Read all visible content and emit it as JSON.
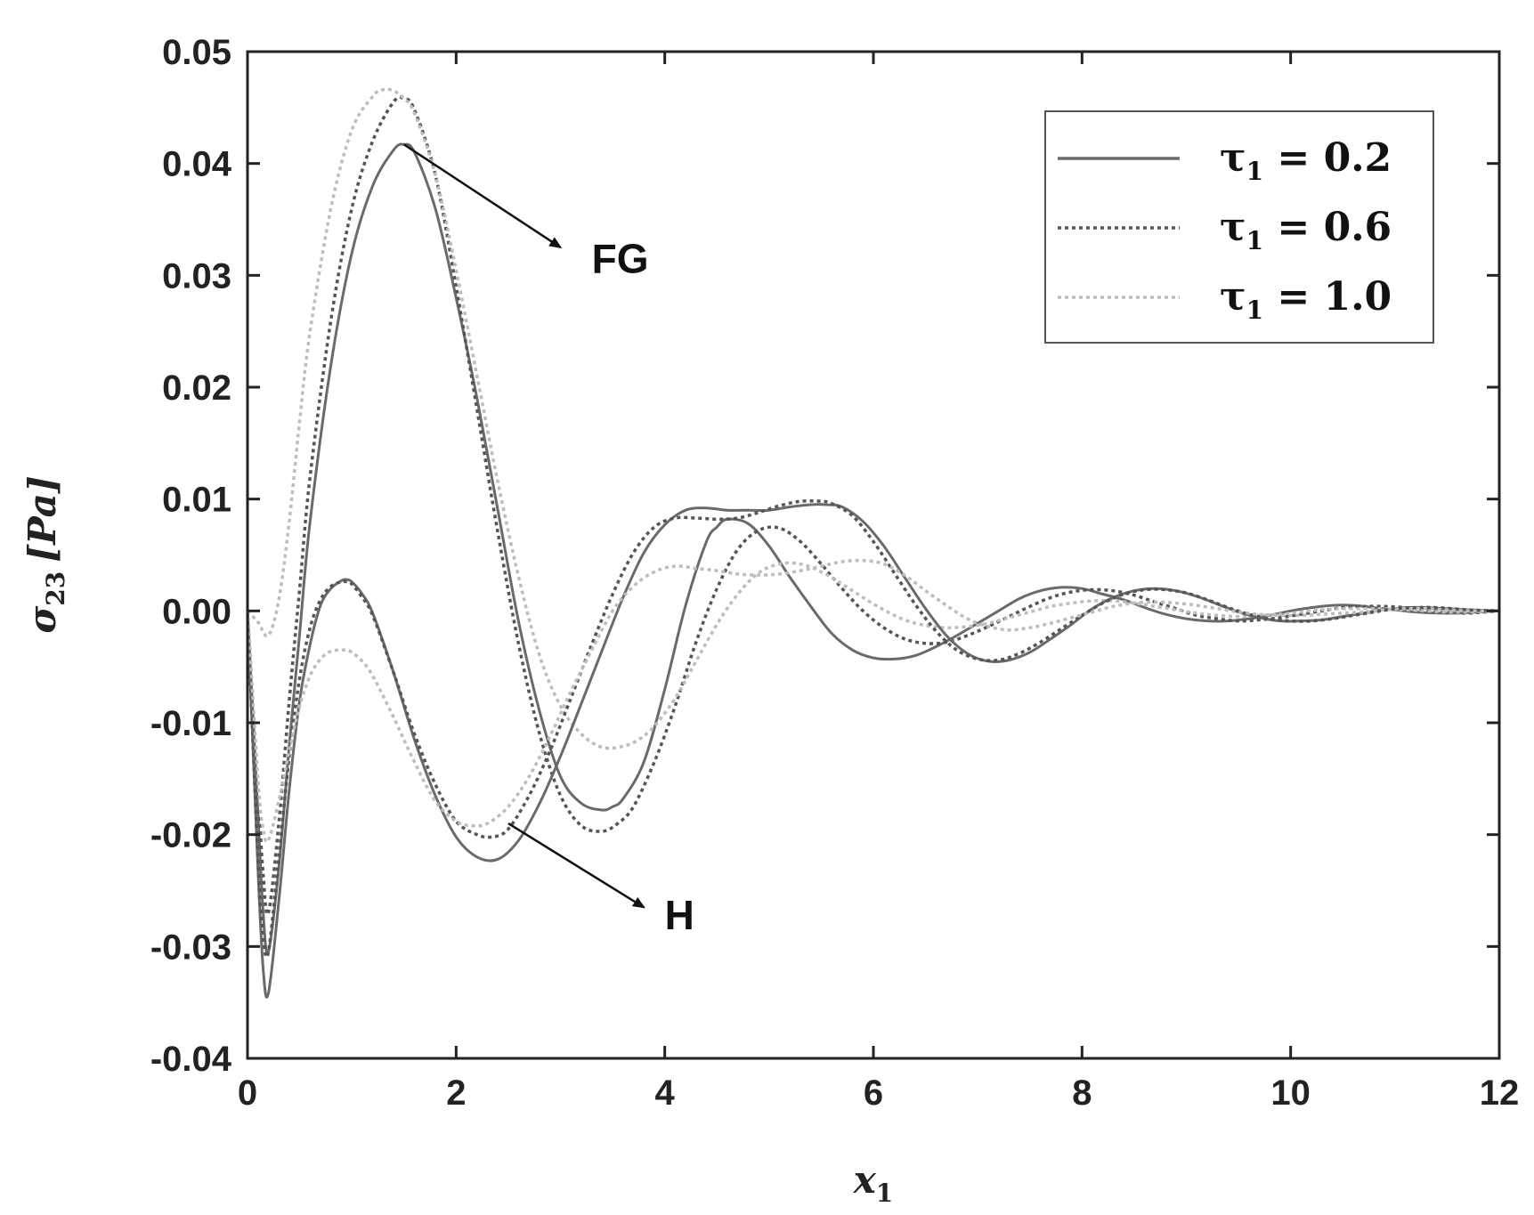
{
  "chart_data": {
    "type": "line",
    "xlabel": "x",
    "xlabel_sub": "1",
    "ylabel": "σ",
    "ylabel_sub": "23",
    "ylabel_unit": "[Pa]",
    "xlim": [
      0,
      12
    ],
    "ylim": [
      -0.04,
      0.05
    ],
    "xticks": [
      0,
      2,
      4,
      6,
      8,
      10,
      12
    ],
    "xtick_labels": [
      "0",
      "2",
      "4",
      "6",
      "8",
      "10",
      "12"
    ],
    "yticks": [
      -0.04,
      -0.03,
      -0.02,
      -0.01,
      0.0,
      0.01,
      0.02,
      0.03,
      0.04,
      0.05
    ],
    "ytick_labels": [
      "-0.04",
      "-0.03",
      "-0.02",
      "-0.01",
      "0.00",
      "0.01",
      "0.02",
      "0.03",
      "0.04",
      "0.05"
    ],
    "grid": false,
    "legend_position": "top-right",
    "legend": [
      {
        "tau": "τ",
        "sub": "1",
        "value": " = 0.2",
        "style": "solid",
        "color": "#6a6a6a"
      },
      {
        "tau": "τ",
        "sub": "1",
        "value": " = 0.6",
        "style": "dotted",
        "color": "#555555"
      },
      {
        "tau": "τ",
        "sub": "1",
        "value": " = 1.0",
        "style": "dotted",
        "color": "#bdbdbd"
      }
    ],
    "annotations": [
      {
        "text": "FG",
        "from": [
          1.5,
          0.0417
        ],
        "to": [
          3.0,
          0.0325
        ],
        "label_at": [
          3.3,
          0.0315
        ]
      },
      {
        "text": "H",
        "from": [
          2.5,
          -0.019
        ],
        "to": [
          3.8,
          -0.0265
        ],
        "label_at": [
          4.0,
          -0.0272
        ]
      }
    ],
    "series": [
      {
        "group": "FG",
        "tau": 0.2,
        "style": "solid",
        "color": "#6a6a6a",
        "x": [
          0,
          0.1,
          0.15,
          0.2,
          0.3,
          0.4,
          0.5,
          0.6,
          0.8,
          1.0,
          1.2,
          1.4,
          1.5,
          1.6,
          1.8,
          2.0,
          2.2,
          2.4,
          2.6,
          2.8,
          3.0,
          3.2,
          3.4,
          3.5,
          3.6,
          3.8,
          4.0,
          4.2,
          4.4,
          4.5,
          4.6,
          4.8,
          5.0,
          5.2,
          5.4,
          5.6,
          5.8,
          6.0,
          6.2,
          6.4,
          6.6,
          6.8,
          7.0,
          7.2,
          7.4,
          7.6,
          7.8,
          8.0,
          8.2,
          8.4,
          8.6,
          8.8,
          9.0,
          9.2,
          9.4,
          9.6,
          9.8,
          10.0,
          10.2,
          10.4,
          10.6,
          10.8,
          11.0,
          11.2,
          11.4,
          11.6,
          11.8,
          12.0
        ],
        "y": [
          0,
          -0.018,
          -0.027,
          -0.0305,
          -0.023,
          -0.012,
          -0.002,
          0.008,
          0.022,
          0.032,
          0.038,
          0.0412,
          0.0417,
          0.041,
          0.036,
          0.028,
          0.019,
          0.009,
          -0.001,
          -0.009,
          -0.0148,
          -0.0172,
          -0.0178,
          -0.0175,
          -0.0168,
          -0.0135,
          -0.007,
          0.0005,
          0.0062,
          0.0075,
          0.0082,
          0.0078,
          0.0058,
          0.003,
          0.0004,
          -0.002,
          -0.0035,
          -0.0042,
          -0.0043,
          -0.004,
          -0.0032,
          -0.0022,
          -0.0011,
          0.0,
          0.0011,
          0.0018,
          0.0021,
          0.002,
          0.0015,
          0.001,
          0.0003,
          -0.0003,
          -0.0007,
          -0.0009,
          -0.0009,
          -0.0007,
          -0.0004,
          0.0,
          0.0003,
          0.0005,
          0.0005,
          0.0003,
          0.0001,
          -0.0001,
          -0.0002,
          -0.0002,
          -0.0001,
          0.0
        ]
      },
      {
        "group": "FG",
        "tau": 0.6,
        "style": "dotted",
        "color": "#555555",
        "x": [
          0,
          0.1,
          0.15,
          0.2,
          0.3,
          0.4,
          0.5,
          0.6,
          0.8,
          1.0,
          1.2,
          1.4,
          1.5,
          1.6,
          1.8,
          2.0,
          2.2,
          2.4,
          2.6,
          2.8,
          3.0,
          3.2,
          3.4,
          3.55,
          3.7,
          3.9,
          4.1,
          4.3,
          4.5,
          4.7,
          4.9,
          5.1,
          5.3,
          5.5,
          5.7,
          5.9,
          6.1,
          6.3,
          6.5,
          6.7,
          6.9,
          7.1,
          7.3,
          7.5,
          7.7,
          7.9,
          8.1,
          8.3,
          8.5,
          8.7,
          8.9,
          9.1,
          9.3,
          9.5,
          9.7,
          9.9,
          10.1,
          10.3,
          10.5,
          10.7,
          10.9,
          11.1,
          11.3,
          11.5,
          11.7,
          12.0
        ],
        "y": [
          0,
          -0.016,
          -0.0235,
          -0.027,
          -0.019,
          -0.008,
          0.002,
          0.012,
          0.026,
          0.036,
          0.042,
          0.0455,
          0.0458,
          0.0448,
          0.039,
          0.029,
          0.018,
          0.007,
          -0.003,
          -0.011,
          -0.0165,
          -0.0192,
          -0.0197,
          -0.019,
          -0.0175,
          -0.0135,
          -0.0085,
          -0.0028,
          0.002,
          0.0055,
          0.0072,
          0.0074,
          0.0062,
          0.0042,
          0.002,
          0.0,
          -0.0015,
          -0.0025,
          -0.0029,
          -0.0028,
          -0.0022,
          -0.0014,
          -0.0005,
          0.0004,
          0.0012,
          0.0017,
          0.0019,
          0.0018,
          0.0014,
          0.0008,
          0.0002,
          -0.0004,
          -0.0007,
          -0.0009,
          -0.0008,
          -0.0006,
          -0.0003,
          0.0,
          0.0003,
          0.0004,
          0.0004,
          0.0003,
          0.0001,
          -0.0001,
          -0.0002,
          0.0
        ]
      },
      {
        "group": "FG",
        "tau": 1.0,
        "style": "dotted",
        "color": "#bdbdbd",
        "x": [
          0,
          0.1,
          0.2,
          0.3,
          0.4,
          0.5,
          0.6,
          0.8,
          1.0,
          1.2,
          1.3,
          1.4,
          1.5,
          1.6,
          1.8,
          2.0,
          2.2,
          2.4,
          2.6,
          2.8,
          3.0,
          3.2,
          3.4,
          3.6,
          3.75,
          3.9,
          4.1,
          4.3,
          4.5,
          4.7,
          4.9,
          5.1,
          5.3,
          5.5,
          5.7,
          5.9,
          6.1,
          6.3,
          6.5,
          6.7,
          6.9,
          7.1,
          7.3,
          7.5,
          7.7,
          7.9,
          8.1,
          8.3,
          8.5,
          8.7,
          8.9,
          9.1,
          9.3,
          9.5,
          9.7,
          9.9,
          10.1,
          10.3,
          10.5,
          10.7,
          10.9,
          11.1,
          11.3,
          11.5,
          11.7,
          12.0
        ],
        "y": [
          0,
          -0.001,
          -0.0022,
          0.001,
          0.008,
          0.017,
          0.025,
          0.036,
          0.043,
          0.046,
          0.0466,
          0.0465,
          0.0458,
          0.0445,
          0.039,
          0.0305,
          0.021,
          0.0115,
          0.003,
          -0.004,
          -0.0085,
          -0.011,
          -0.0122,
          -0.0121,
          -0.0115,
          -0.0103,
          -0.0078,
          -0.0045,
          -0.0012,
          0.0015,
          0.0034,
          0.0042,
          0.0042,
          0.0035,
          0.0024,
          0.0012,
          0.0001,
          -0.0008,
          -0.0013,
          -0.0015,
          -0.0014,
          -0.0011,
          -0.0006,
          -0.0001,
          0.0004,
          0.0007,
          0.0009,
          0.0009,
          0.0007,
          0.0004,
          0.0001,
          -0.0002,
          -0.0004,
          -0.0005,
          -0.0004,
          -0.0003,
          -0.0001,
          0.0001,
          0.0002,
          0.0002,
          0.0002,
          0.0001,
          0.0,
          -0.0001,
          -0.0001,
          0.0
        ]
      },
      {
        "group": "H",
        "tau": 0.2,
        "style": "solid",
        "color": "#6a6a6a",
        "x": [
          0,
          0.1,
          0.15,
          0.2,
          0.3,
          0.4,
          0.5,
          0.6,
          0.7,
          0.8,
          0.9,
          0.95,
          1.0,
          1.1,
          1.2,
          1.4,
          1.6,
          1.8,
          2.0,
          2.2,
          2.4,
          2.6,
          2.8,
          3.0,
          3.2,
          3.4,
          3.6,
          3.8,
          4.0,
          4.2,
          4.4,
          4.6,
          4.8,
          5.0,
          5.2,
          5.4,
          5.55,
          5.7,
          5.9,
          6.1,
          6.3,
          6.5,
          6.7,
          6.9,
          7.1,
          7.3,
          7.5,
          7.7,
          7.9,
          8.1,
          8.3,
          8.5,
          8.7,
          8.9,
          9.1,
          9.3,
          9.5,
          9.7,
          9.9,
          10.1,
          10.3,
          10.5,
          10.7,
          10.9,
          11.1,
          11.3,
          11.5,
          11.7,
          12.0
        ],
        "y": [
          0,
          -0.023,
          -0.032,
          -0.0342,
          -0.026,
          -0.016,
          -0.008,
          -0.003,
          0.0005,
          0.002,
          0.0027,
          0.0028,
          0.0026,
          0.0015,
          -0.0002,
          -0.0055,
          -0.0115,
          -0.0165,
          -0.0202,
          -0.022,
          -0.0222,
          -0.0205,
          -0.0172,
          -0.013,
          -0.0083,
          -0.0035,
          0.0012,
          0.0052,
          0.0077,
          0.009,
          0.0092,
          0.009,
          0.009,
          0.009,
          0.0093,
          0.0095,
          0.0095,
          0.0093,
          0.008,
          0.0058,
          0.003,
          0.0002,
          -0.0022,
          -0.0038,
          -0.0045,
          -0.0044,
          -0.0037,
          -0.0025,
          -0.0012,
          0.0002,
          0.0012,
          0.0018,
          0.002,
          0.0018,
          0.0013,
          0.0006,
          -0.0001,
          -0.0006,
          -0.0009,
          -0.0009,
          -0.0008,
          -0.0005,
          -0.0002,
          0.0001,
          0.0003,
          0.0003,
          0.0002,
          0.0001,
          0.0
        ]
      },
      {
        "group": "H",
        "tau": 0.6,
        "style": "dotted",
        "color": "#555555",
        "x": [
          0,
          0.1,
          0.15,
          0.2,
          0.3,
          0.4,
          0.5,
          0.6,
          0.7,
          0.8,
          0.9,
          0.95,
          1.0,
          1.1,
          1.2,
          1.4,
          1.6,
          1.8,
          2.0,
          2.2,
          2.35,
          2.5,
          2.7,
          2.9,
          3.1,
          3.3,
          3.5,
          3.7,
          3.9,
          4.1,
          4.3,
          4.5,
          4.7,
          4.9,
          5.1,
          5.3,
          5.5,
          5.6,
          5.8,
          6.0,
          6.2,
          6.4,
          6.6,
          6.8,
          7.0,
          7.2,
          7.4,
          7.6,
          7.8,
          8.0,
          8.2,
          8.4,
          8.6,
          8.8,
          9.0,
          9.2,
          9.4,
          9.6,
          9.8,
          10.0,
          10.2,
          10.4,
          10.6,
          10.8,
          11.0,
          11.2,
          11.4,
          11.7,
          12.0
        ],
        "y": [
          0,
          -0.022,
          -0.029,
          -0.0305,
          -0.022,
          -0.013,
          -0.006,
          -0.0015,
          0.001,
          0.0022,
          0.0026,
          0.0026,
          0.0024,
          0.0012,
          -0.0004,
          -0.0055,
          -0.011,
          -0.0155,
          -0.0188,
          -0.02,
          -0.0202,
          -0.0195,
          -0.0165,
          -0.0125,
          -0.0078,
          -0.003,
          0.0015,
          0.0052,
          0.0075,
          0.0083,
          0.0083,
          0.0082,
          0.0083,
          0.0088,
          0.0094,
          0.0098,
          0.0098,
          0.0096,
          0.0085,
          0.0062,
          0.0034,
          0.0006,
          -0.0018,
          -0.0035,
          -0.0043,
          -0.0044,
          -0.0038,
          -0.0028,
          -0.0016,
          -0.0004,
          0.0007,
          0.0015,
          0.0019,
          0.0019,
          0.0016,
          0.001,
          0.0003,
          -0.0003,
          -0.0007,
          -0.0009,
          -0.0009,
          -0.0007,
          -0.0004,
          -0.0001,
          0.0002,
          0.0003,
          0.0003,
          0.0001,
          0.0
        ]
      },
      {
        "group": "H",
        "tau": 1.0,
        "style": "dotted",
        "color": "#bdbdbd",
        "x": [
          0,
          0.1,
          0.15,
          0.2,
          0.3,
          0.4,
          0.5,
          0.6,
          0.7,
          0.8,
          0.9,
          0.95,
          1.0,
          1.1,
          1.2,
          1.4,
          1.6,
          1.8,
          2.0,
          2.15,
          2.3,
          2.5,
          2.7,
          2.9,
          3.1,
          3.3,
          3.5,
          3.7,
          3.9,
          4.1,
          4.3,
          4.5,
          4.7,
          4.9,
          5.1,
          5.3,
          5.5,
          5.7,
          5.9,
          6.1,
          6.3,
          6.5,
          6.7,
          6.9,
          7.1,
          7.3,
          7.5,
          7.7,
          7.9,
          8.1,
          8.3,
          8.5,
          8.7,
          8.9,
          9.1,
          9.3,
          9.5,
          9.7,
          9.9,
          10.1,
          10.3,
          10.5,
          10.7,
          10.9,
          11.1,
          11.3,
          11.5,
          11.7,
          12.0
        ],
        "y": [
          0,
          -0.015,
          -0.0195,
          -0.0205,
          -0.017,
          -0.0125,
          -0.0085,
          -0.0058,
          -0.0043,
          -0.0036,
          -0.0035,
          -0.0035,
          -0.0037,
          -0.0045,
          -0.0058,
          -0.0095,
          -0.0135,
          -0.017,
          -0.0188,
          -0.0192,
          -0.019,
          -0.0175,
          -0.0148,
          -0.0112,
          -0.0072,
          -0.0035,
          0.0,
          0.0022,
          0.0035,
          0.004,
          0.0038,
          0.0036,
          0.0033,
          0.0032,
          0.0033,
          0.0036,
          0.004,
          0.0044,
          0.0045,
          0.0042,
          0.0032,
          0.0018,
          0.0005,
          -0.0007,
          -0.0014,
          -0.0017,
          -0.0015,
          -0.0011,
          -0.0006,
          -0.0001,
          0.0004,
          0.0007,
          0.0008,
          0.0007,
          0.0005,
          0.0002,
          -0.0001,
          -0.0003,
          -0.0004,
          -0.0004,
          -0.0003,
          -0.0002,
          -0.0001,
          0.0001,
          0.0002,
          0.0002,
          0.0001,
          0.0,
          0.0
        ]
      }
    ]
  }
}
